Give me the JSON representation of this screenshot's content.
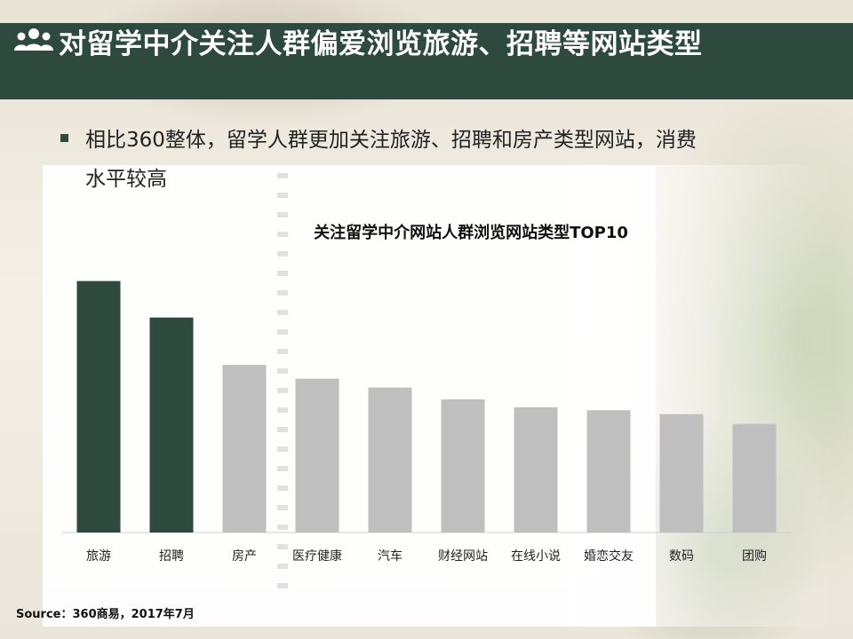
{
  "slide": {
    "title": "对留学中介关注人群偏爱浏览旅游、招聘等网站类型",
    "title_icon": "people-group-icon",
    "bullet": {
      "line1": "相比360整体，留学人群更加关注旅游、招聘和房产类型网站，消费",
      "line2": "水平较高"
    },
    "source": "Source：360商易，2017年7月"
  },
  "colors": {
    "title_bar": "#2e4a3f",
    "bar_highlight": "#2e4a3f",
    "bar_normal": "#bfbfbf"
  },
  "chart_data": {
    "type": "bar",
    "title": "关注留学中介网站人群浏览网站类型TOP10",
    "categories": [
      "旅游",
      "招聘",
      "房产",
      "医疗健康",
      "汽车",
      "财经网站",
      "在线小说",
      "婚恋交友",
      "数码",
      "团购"
    ],
    "values": [
      255,
      218,
      170,
      156,
      147,
      135,
      127,
      124,
      120,
      110
    ],
    "highlighted": [
      true,
      true,
      false,
      false,
      false,
      false,
      false,
      false,
      false,
      false
    ],
    "ylim": [
      0,
      270
    ],
    "grid": false,
    "xlabel": "",
    "ylabel": ""
  }
}
